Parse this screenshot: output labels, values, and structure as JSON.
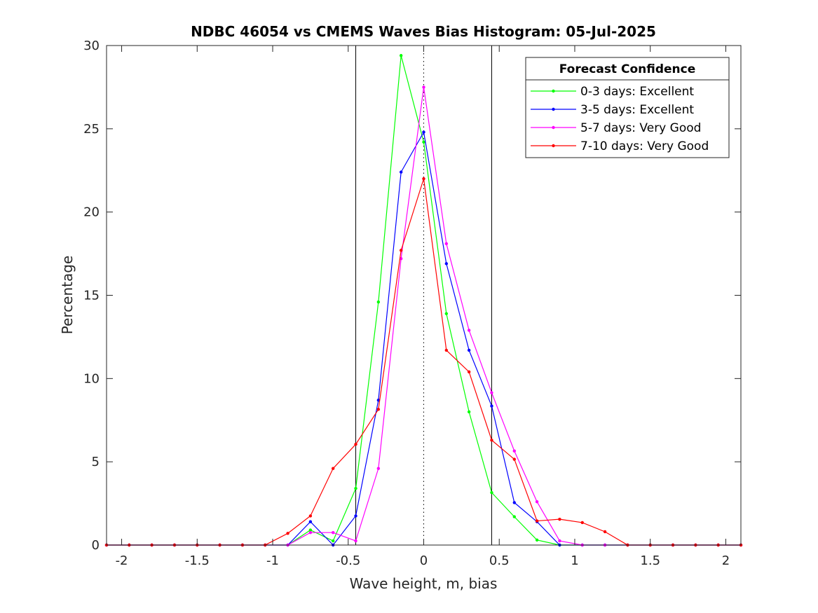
{
  "chart_data": {
    "type": "line",
    "title": "NDBC 46054 vs CMEMS Waves Bias Histogram: 05-Jul-2025",
    "xlabel": "Wave height, m, bias",
    "ylabel": "Percentage",
    "xlim": [
      -2.1,
      2.1
    ],
    "ylim": [
      0,
      30
    ],
    "xticks": [
      -2,
      -1.5,
      -1,
      -0.5,
      0,
      0.5,
      1,
      1.5,
      2
    ],
    "xtick_labels": [
      "-2",
      "-1.5",
      "-1",
      "-0.5",
      "0",
      "0.5",
      "1",
      "1.5",
      "2"
    ],
    "yticks": [
      0,
      5,
      10,
      15,
      20,
      25,
      30
    ],
    "ytick_labels": [
      "0",
      "5",
      "10",
      "15",
      "20",
      "25",
      "30"
    ],
    "grid": false,
    "reference_lines": [
      {
        "x": -0.45,
        "style": "solid"
      },
      {
        "x": 0.45,
        "style": "solid"
      },
      {
        "x": 0,
        "style": "dotted"
      }
    ],
    "legend": {
      "title": "Forecast Confidence",
      "placement": "top-right"
    },
    "x": [
      -2.1,
      -1.95,
      -1.8,
      -1.65,
      -1.5,
      -1.35,
      -1.2,
      -1.05,
      -0.9,
      -0.75,
      -0.6,
      -0.45,
      -0.3,
      -0.15,
      0,
      0.15,
      0.3,
      0.45,
      0.6,
      0.75,
      0.9,
      1.05,
      1.2,
      1.35,
      1.5,
      1.65,
      1.8,
      1.95,
      2.1
    ],
    "series": [
      {
        "name": "0-3 days: Excellent",
        "color": "#00ff00",
        "values": [
          0,
          0,
          0,
          0,
          0,
          0,
          0,
          0,
          0,
          0.9,
          0.25,
          3.4,
          14.6,
          29.4,
          24.2,
          13.9,
          8.0,
          3.15,
          1.7,
          0.3,
          0,
          0,
          0,
          0,
          0,
          0,
          0,
          0,
          0
        ]
      },
      {
        "name": "3-5 days: Excellent",
        "color": "#0000ff",
        "values": [
          0,
          0,
          0,
          0,
          0,
          0,
          0,
          0,
          0,
          1.4,
          0,
          1.75,
          8.7,
          22.4,
          24.8,
          16.9,
          11.7,
          8.35,
          2.55,
          1.4,
          0,
          0,
          0,
          0,
          0,
          0,
          0,
          0,
          0
        ]
      },
      {
        "name": "5-7 days: Very Good",
        "color": "#ff00ff",
        "values": [
          0,
          0,
          0,
          0,
          0,
          0,
          0,
          0,
          0,
          0.75,
          0.75,
          0.25,
          4.6,
          17.2,
          27.5,
          18.1,
          12.9,
          9.15,
          5.65,
          2.6,
          0.25,
          0,
          0,
          0,
          0,
          0,
          0,
          0,
          0
        ]
      },
      {
        "name": "7-10 days: Very Good",
        "color": "#ff0000",
        "values": [
          0,
          0,
          0,
          0,
          0,
          0,
          0,
          0,
          0.7,
          1.75,
          4.6,
          6.05,
          8.15,
          17.7,
          22.0,
          11.7,
          10.4,
          6.3,
          5.15,
          1.45,
          1.55,
          1.35,
          0.8,
          0,
          0,
          0,
          0,
          0,
          0
        ]
      }
    ]
  }
}
